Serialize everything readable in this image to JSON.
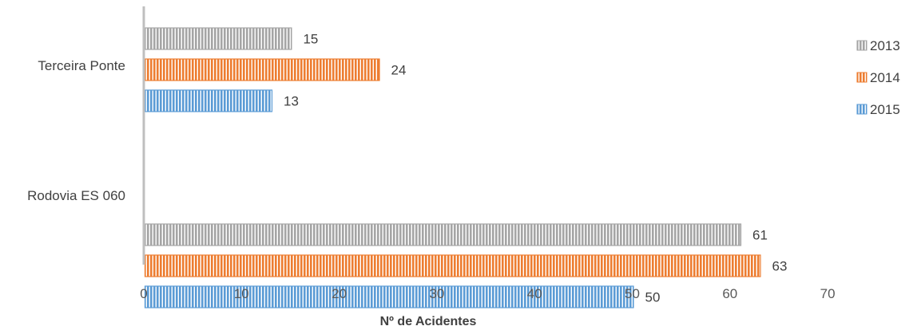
{
  "chart_data": {
    "type": "bar",
    "orientation": "horizontal",
    "categories": [
      "Terceira Ponte",
      "Rodovia ES 060"
    ],
    "series": [
      {
        "name": "2013",
        "values": [
          15,
          61
        ],
        "color": "#a5a5a5"
      },
      {
        "name": "2014",
        "values": [
          24,
          63
        ],
        "color": "#ed7d31"
      },
      {
        "name": "2015",
        "values": [
          13,
          50
        ],
        "color": "#5b9bd5"
      }
    ],
    "xlabel": "Nº de Acidentes",
    "ylabel": "",
    "xlim": [
      0,
      70
    ],
    "x_ticks": [
      "0",
      "10",
      "20",
      "30",
      "40",
      "50",
      "60",
      "70"
    ],
    "grid": false,
    "legend_position": "right",
    "bar_pattern": "vertical-stripes"
  }
}
